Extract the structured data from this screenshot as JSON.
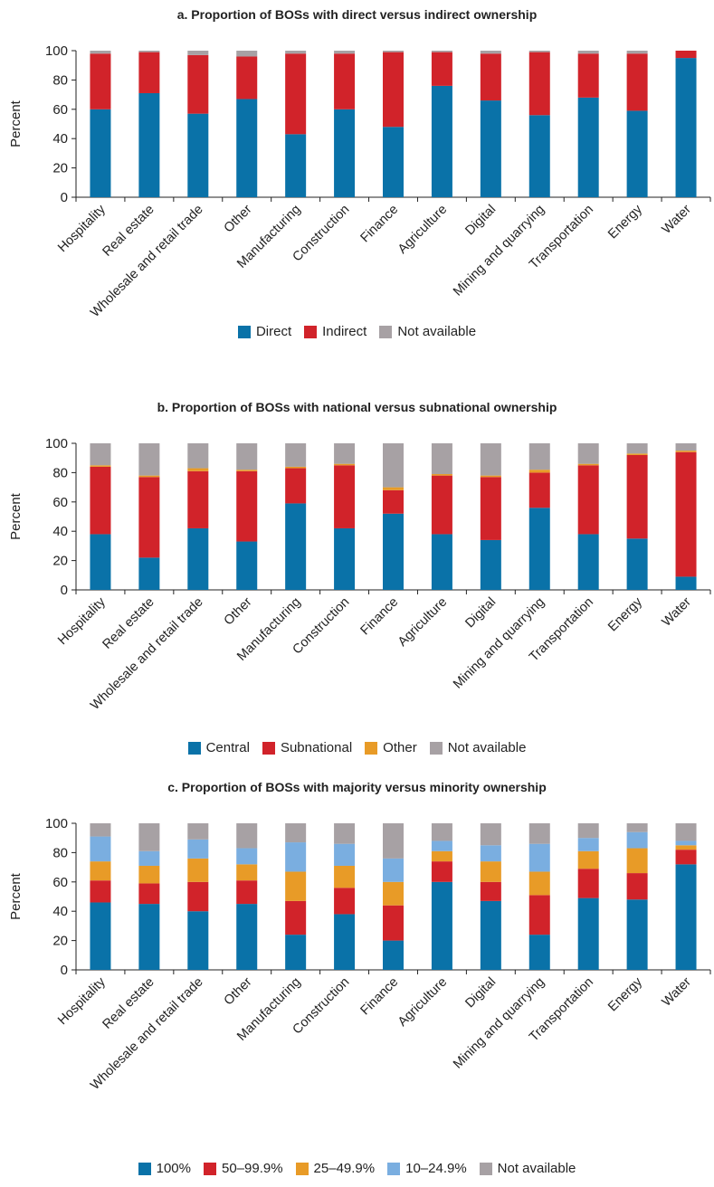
{
  "chart_data": [
    {
      "type": "bar",
      "stacked": true,
      "title": "a. Proportion of BOSs with direct versus indirect ownership",
      "ylabel": "Percent",
      "ylim": [
        0,
        100
      ],
      "yticks": [
        0,
        20,
        40,
        60,
        80,
        100
      ],
      "grid": false,
      "legend_position": "bottom",
      "categories": [
        "Hospitality",
        "Real estate",
        "Wholesale and retail trade",
        "Other",
        "Manufacturing",
        "Construction",
        "Finance",
        "Agriculture",
        "Digital",
        "Mining and quarrying",
        "Transportation",
        "Energy",
        "Water"
      ],
      "series": [
        {
          "name": "Direct",
          "color": "#0a72a8",
          "values": [
            60,
            71,
            57,
            67,
            43,
            60,
            48,
            76,
            66,
            56,
            68,
            59,
            95
          ]
        },
        {
          "name": "Indirect",
          "color": "#d1232a",
          "values": [
            38,
            28,
            40,
            29,
            55,
            38,
            51,
            23,
            32,
            43,
            30,
            39,
            5
          ]
        },
        {
          "name": "Not available",
          "color": "#a7a1a4",
          "values": [
            2,
            1,
            3,
            4,
            2,
            2,
            1,
            1,
            2,
            1,
            2,
            2,
            0
          ]
        }
      ]
    },
    {
      "type": "bar",
      "stacked": true,
      "title": "b. Proportion of BOSs with national versus subnational ownership",
      "ylabel": "Percent",
      "ylim": [
        0,
        100
      ],
      "yticks": [
        0,
        20,
        40,
        60,
        80,
        100
      ],
      "grid": false,
      "legend_position": "bottom",
      "categories": [
        "Hospitality",
        "Real estate",
        "Wholesale and retail trade",
        "Other",
        "Manufacturing",
        "Construction",
        "Finance",
        "Agriculture",
        "Digital",
        "Mining and quarrying",
        "Transportation",
        "Energy",
        "Water"
      ],
      "series": [
        {
          "name": "Central",
          "color": "#0a72a8",
          "values": [
            38,
            22,
            42,
            33,
            59,
            42,
            52,
            38,
            34,
            56,
            38,
            35,
            9
          ]
        },
        {
          "name": "Subnational",
          "color": "#d1232a",
          "values": [
            46,
            55,
            39,
            48,
            24,
            43,
            16,
            40,
            43,
            24,
            47,
            57,
            85
          ]
        },
        {
          "name": "Other",
          "color": "#e89b27",
          "values": [
            1,
            1,
            2,
            1,
            1,
            1,
            2,
            1,
            1,
            2,
            1,
            1,
            1
          ]
        },
        {
          "name": "Not available",
          "color": "#a7a1a4",
          "values": [
            15,
            22,
            17,
            18,
            16,
            14,
            30,
            21,
            22,
            18,
            14,
            7,
            5
          ]
        }
      ]
    },
    {
      "type": "bar",
      "stacked": true,
      "title": "c. Proportion of BOSs with majority versus minority ownership",
      "ylabel": "Percent",
      "ylim": [
        0,
        100
      ],
      "yticks": [
        0,
        20,
        40,
        60,
        80,
        100
      ],
      "grid": false,
      "legend_position": "bottom",
      "categories": [
        "Hospitality",
        "Real estate",
        "Wholesale and retail trade",
        "Other",
        "Manufacturing",
        "Construction",
        "Finance",
        "Agriculture",
        "Digital",
        "Mining and quarrying",
        "Transportation",
        "Energy",
        "Water"
      ],
      "series": [
        {
          "name": "100%",
          "color": "#0a72a8",
          "values": [
            46,
            45,
            40,
            45,
            24,
            38,
            20,
            60,
            47,
            24,
            49,
            48,
            72
          ]
        },
        {
          "name": "50–99.9%",
          "color": "#d1232a",
          "values": [
            15,
            14,
            20,
            16,
            23,
            18,
            24,
            14,
            13,
            27,
            20,
            18,
            10
          ]
        },
        {
          "name": "25–49.9%",
          "color": "#e89b27",
          "values": [
            13,
            12,
            16,
            11,
            20,
            15,
            16,
            7,
            14,
            16,
            12,
            17,
            3
          ]
        },
        {
          "name": "10–24.9%",
          "color": "#7aaee0",
          "values": [
            17,
            10,
            13,
            11,
            20,
            15,
            16,
            7,
            11,
            19,
            9,
            11,
            3
          ]
        },
        {
          "name": "Not available",
          "color": "#a7a1a4",
          "values": [
            9,
            19,
            11,
            17,
            13,
            14,
            24,
            12,
            15,
            14,
            10,
            6,
            12
          ]
        }
      ]
    }
  ]
}
